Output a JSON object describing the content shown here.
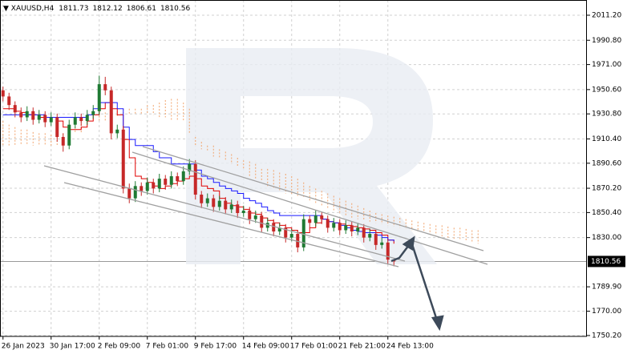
{
  "chart_data": {
    "type": "candlestick",
    "symbol": "XAUUSD,H4",
    "categories": [
      "26 Jan 2023",
      null,
      null,
      null,
      null,
      null,
      null,
      null,
      "30 Jan 17:00",
      null,
      null,
      null,
      null,
      null,
      null,
      null,
      "2 Feb 09:00",
      null,
      null,
      null,
      null,
      null,
      null,
      null,
      "7 Feb 01:00",
      null,
      null,
      null,
      null,
      null,
      null,
      null,
      "9 Feb 17:00",
      null,
      null,
      null,
      null,
      null,
      null,
      null,
      "14 Feb 09:00",
      null,
      null,
      null,
      null,
      null,
      null,
      null,
      "17 Feb 01:00",
      null,
      null,
      null,
      null,
      null,
      null,
      null,
      "21 Feb 21:00",
      null,
      null,
      null,
      null,
      null,
      null,
      null,
      "24 Feb 13:00",
      null,
      null,
      null,
      null,
      null,
      null,
      null,
      null,
      null,
      null,
      null,
      null,
      null,
      null,
      null
    ],
    "ohlc": [
      [
        1950,
        1953,
        1941,
        1945
      ],
      [
        1945,
        1948,
        1934,
        1938
      ],
      [
        1938,
        1941,
        1928,
        1932
      ],
      [
        1932,
        1936,
        1924,
        1928
      ],
      [
        1928,
        1937,
        1925,
        1933
      ],
      [
        1933,
        1936,
        1922,
        1926
      ],
      [
        1926,
        1934,
        1923,
        1930
      ],
      [
        1930,
        1933,
        1920,
        1924
      ],
      [
        1924,
        1932,
        1921,
        1928
      ],
      [
        1928,
        1931,
        1908,
        1912
      ],
      [
        1912,
        1915,
        1900,
        1905
      ],
      [
        1905,
        1926,
        1902,
        1922
      ],
      [
        1922,
        1932,
        1919,
        1928
      ],
      [
        1928,
        1931,
        1921,
        1925
      ],
      [
        1925,
        1934,
        1922,
        1930
      ],
      [
        1930,
        1938,
        1927,
        1933
      ],
      [
        1933,
        1962,
        1930,
        1955
      ],
      [
        1955,
        1961,
        1946,
        1950
      ],
      [
        1950,
        1953,
        1910,
        1915
      ],
      [
        1915,
        1922,
        1911,
        1918
      ],
      [
        1918,
        1921,
        1866,
        1870
      ],
      [
        1870,
        1874,
        1858,
        1862
      ],
      [
        1862,
        1876,
        1859,
        1872
      ],
      [
        1872,
        1875,
        1864,
        1868
      ],
      [
        1868,
        1879,
        1865,
        1875
      ],
      [
        1875,
        1878,
        1866,
        1870
      ],
      [
        1870,
        1882,
        1867,
        1878
      ],
      [
        1878,
        1881,
        1869,
        1873
      ],
      [
        1873,
        1884,
        1870,
        1880
      ],
      [
        1880,
        1883,
        1872,
        1876
      ],
      [
        1876,
        1888,
        1873,
        1884
      ],
      [
        1884,
        1894,
        1881,
        1890
      ],
      [
        1890,
        1893,
        1861,
        1865
      ],
      [
        1865,
        1868,
        1854,
        1858
      ],
      [
        1858,
        1866,
        1855,
        1862
      ],
      [
        1862,
        1865,
        1851,
        1855
      ],
      [
        1855,
        1864,
        1852,
        1860
      ],
      [
        1860,
        1863,
        1849,
        1853
      ],
      [
        1853,
        1861,
        1850,
        1857
      ],
      [
        1857,
        1860,
        1846,
        1850
      ],
      [
        1850,
        1856,
        1847,
        1852
      ],
      [
        1852,
        1855,
        1841,
        1845
      ],
      [
        1845,
        1852,
        1842,
        1848
      ],
      [
        1848,
        1851,
        1834,
        1838
      ],
      [
        1838,
        1846,
        1835,
        1842
      ],
      [
        1842,
        1845,
        1831,
        1835
      ],
      [
        1835,
        1842,
        1832,
        1838
      ],
      [
        1838,
        1841,
        1826,
        1830
      ],
      [
        1830,
        1837,
        1827,
        1833
      ],
      [
        1833,
        1836,
        1818,
        1822
      ],
      [
        1822,
        1849,
        1819,
        1845
      ],
      [
        1845,
        1848,
        1838,
        1842
      ],
      [
        1842,
        1852,
        1839,
        1848
      ],
      [
        1848,
        1851,
        1841,
        1845
      ],
      [
        1845,
        1848,
        1834,
        1838
      ],
      [
        1838,
        1846,
        1835,
        1842
      ],
      [
        1842,
        1845,
        1832,
        1836
      ],
      [
        1836,
        1844,
        1833,
        1840
      ],
      [
        1840,
        1843,
        1831,
        1835
      ],
      [
        1835,
        1842,
        1832,
        1838
      ],
      [
        1838,
        1841,
        1826,
        1830
      ],
      [
        1830,
        1837,
        1827,
        1833
      ],
      [
        1833,
        1836,
        1820,
        1824
      ],
      [
        1824,
        1830,
        1821,
        1826
      ],
      [
        1826,
        1829,
        1808,
        1812
      ],
      [
        1811.73,
        1812.12,
        1806.61,
        1810.56
      ],
      null,
      null,
      null,
      null,
      null,
      null,
      null,
      null,
      null,
      null,
      null,
      null,
      null,
      null
    ],
    "up_color": "#1f7a33",
    "down_color": "#c62828",
    "lines": [
      {
        "color": "#e00000",
        "values": [
          1935,
          1935,
          1933,
          1932,
          1930,
          1930,
          1928,
          1928,
          1928,
          1925,
          1920,
          1918,
          1918,
          1920,
          1925,
          1930,
          1935,
          1940,
          1935,
          1930,
          1910,
          1895,
          1880,
          1878,
          1875,
          1872,
          1870,
          1872,
          1874,
          1876,
          1878,
          1880,
          1878,
          1872,
          1870,
          1868,
          1862,
          1858,
          1856,
          1855,
          1853,
          1850,
          1849,
          1846,
          1844,
          1842,
          1840,
          1838,
          1836,
          1834,
          1834,
          1838,
          1842,
          1845,
          1843,
          1842,
          1841,
          1840,
          1839,
          1838,
          1837,
          1836,
          1834,
          1832,
          1828,
          1825,
          null,
          null,
          null,
          null,
          null,
          null,
          null,
          null,
          null,
          null,
          null,
          null,
          null,
          null
        ]
      },
      {
        "color": "#1a1aff",
        "values": [
          1930,
          1930,
          1930,
          1930,
          1930,
          1930,
          1930,
          1928,
          1928,
          1928,
          1928,
          1928,
          1928,
          1928,
          1930,
          1935,
          1940,
          1940,
          1940,
          1935,
          1920,
          1910,
          1905,
          1905,
          1905,
          1900,
          1895,
          1895,
          1890,
          1890,
          1890,
          1890,
          1885,
          1880,
          1878,
          1875,
          1872,
          1870,
          1868,
          1866,
          1862,
          1860,
          1858,
          1855,
          1852,
          1850,
          1848,
          1848,
          1848,
          1848,
          1848,
          1848,
          1848,
          1845,
          1843,
          1842,
          1840,
          1838,
          1836,
          1835,
          1834,
          1834,
          1832,
          1830,
          1828,
          1827,
          null,
          null,
          null,
          null,
          null,
          null,
          null,
          null,
          null,
          null,
          null,
          null,
          null,
          null
        ]
      }
    ],
    "cloud": {
      "up_color": "#f2a36b",
      "down_color": "#b9a3d6",
      "span_a": [
        1925,
        1922,
        1920,
        1918,
        1918,
        1916,
        1915,
        1915,
        1914,
        1912,
        1915,
        1918,
        1920,
        1925,
        1928,
        1930,
        1932,
        1932,
        1933,
        1933,
        1935,
        1935,
        1935,
        1935,
        1938,
        1938,
        1940,
        1942,
        1943,
        1943,
        1940,
        1935,
        1912,
        1908,
        1905,
        1905,
        1902,
        1900,
        1898,
        1895,
        1893,
        1892,
        1890,
        1886,
        1886,
        1885,
        1883,
        1882,
        1880,
        1878,
        1875,
        1872,
        1870,
        1868,
        1866,
        1864,
        1862,
        1860,
        1858,
        1856,
        1854,
        1852,
        1850,
        1849,
        1848,
        1847,
        1846,
        1845,
        1844,
        1843,
        1842,
        1841,
        1840,
        1840,
        1839,
        1838,
        1838,
        1837,
        1836,
        1836
      ],
      "span_b": [
        1905,
        1905,
        1905,
        1905,
        1905,
        1905,
        1905,
        1905,
        1905,
        1905,
        1910,
        1912,
        1915,
        1915,
        1920,
        1925,
        1925,
        1925,
        1928,
        1928,
        1930,
        1930,
        1930,
        1930,
        1930,
        1930,
        1928,
        1928,
        1926,
        1926,
        1925,
        1915,
        1905,
        1902,
        1900,
        1896,
        1895,
        1893,
        1890,
        1888,
        1886,
        1880,
        1878,
        1876,
        1872,
        1870,
        1868,
        1866,
        1865,
        1864,
        1862,
        1860,
        1858,
        1856,
        1854,
        1852,
        1850,
        1848,
        1846,
        1845,
        1844,
        1843,
        1842,
        1841,
        1840,
        1839,
        1838,
        1837,
        1836,
        1835,
        1834,
        1833,
        1832,
        1831,
        1830,
        1829,
        1828,
        1827,
        1826,
        1825
      ]
    },
    "ylim": [
      1749.5,
      2023.6
    ],
    "yticks": [
      {
        "value": 2011.2,
        "label": "2011.20"
      },
      {
        "value": 1990.8,
        "label": "1990.80"
      },
      {
        "value": 1971.0,
        "label": "1971.00"
      },
      {
        "value": 1950.6,
        "label": "1950.60"
      },
      {
        "value": 1930.8,
        "label": "1930.80"
      },
      {
        "value": 1910.4,
        "label": "1910.40"
      },
      {
        "value": 1890.6,
        "label": "1890.60"
      },
      {
        "value": 1870.2,
        "label": "1870.20"
      },
      {
        "value": 1850.4,
        "label": "1850.40"
      },
      {
        "value": 1830.0,
        "label": "1830.00"
      },
      {
        "value": 1789.9,
        "label": "1789.90"
      },
      {
        "value": 1770.0,
        "label": "1770.00"
      },
      {
        "value": 1750.2,
        "label": "1750.20"
      }
    ],
    "grid": true
  }
}
